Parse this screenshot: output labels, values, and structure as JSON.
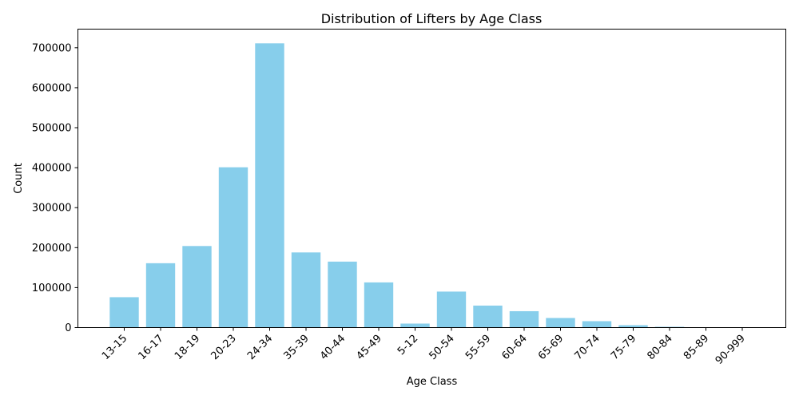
{
  "chart_data": {
    "type": "bar",
    "title": "Distribution of Lifters by Age Class",
    "xlabel": "Age Class",
    "ylabel": "Count",
    "categories": [
      "13-15",
      "16-17",
      "18-19",
      "20-23",
      "24-34",
      "35-39",
      "40-44",
      "45-49",
      "5-12",
      "50-54",
      "55-59",
      "60-64",
      "65-69",
      "70-74",
      "75-79",
      "80-84",
      "85-89",
      "90-999"
    ],
    "values": [
      76000,
      161000,
      204000,
      401000,
      711000,
      188000,
      165000,
      113000,
      10000,
      90000,
      55000,
      41000,
      24000,
      16000,
      6000,
      2000,
      600,
      100
    ],
    "ylim": [
      0,
      746550
    ],
    "yticks": [
      0,
      100000,
      200000,
      300000,
      400000,
      500000,
      600000,
      700000
    ],
    "ytick_labels": [
      "0",
      "100000",
      "200000",
      "300000",
      "400000",
      "500000",
      "600000",
      "700000"
    ],
    "grid": false,
    "bar_color": "#87CEEB",
    "x_tick_rotation_deg": 45
  }
}
